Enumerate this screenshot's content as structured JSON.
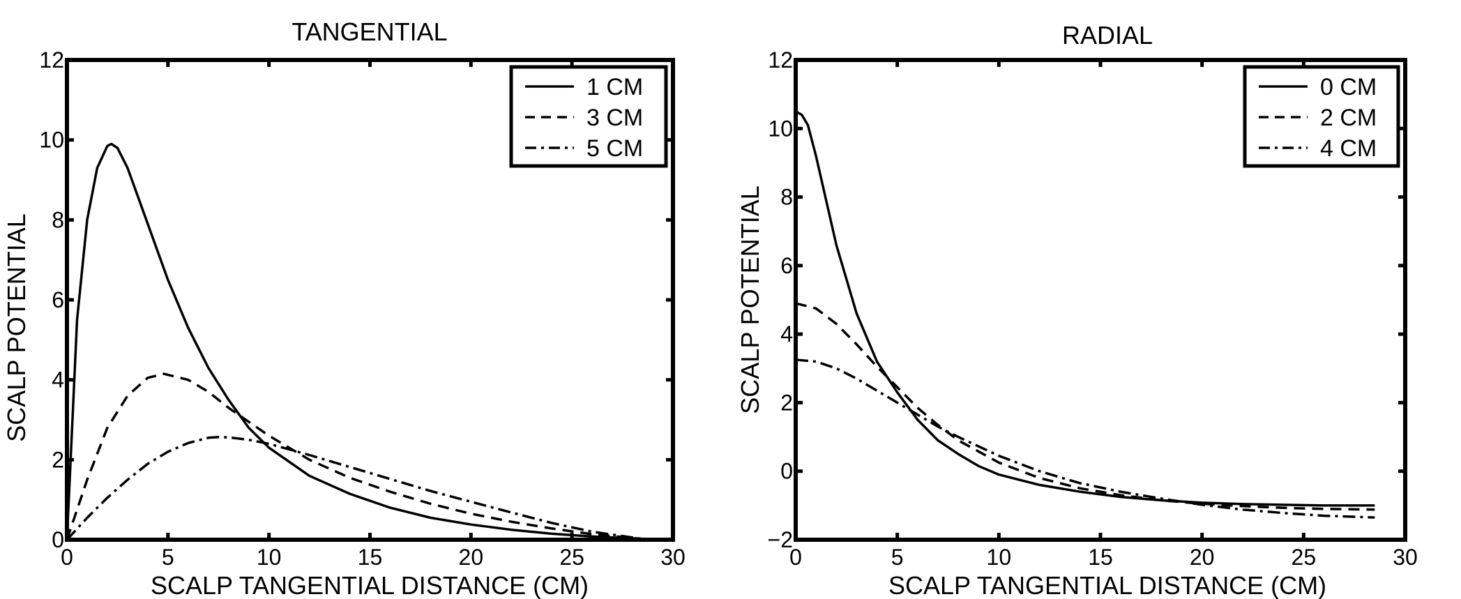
{
  "chart_data": [
    {
      "type": "line",
      "title": "TANGENTIAL",
      "xlabel": "SCALP TANGENTIAL DISTANCE (CM)",
      "ylabel": "SCALP POTENTIAL",
      "xlim": [
        0,
        30
      ],
      "ylim": [
        0,
        12
      ],
      "xticks": [
        0,
        5,
        10,
        15,
        20,
        25,
        30
      ],
      "yticks": [
        0,
        2,
        4,
        6,
        8,
        10,
        12
      ],
      "xtick_labels": [
        "0",
        "5",
        "10",
        "15",
        "20",
        "25",
        "30"
      ],
      "ytick_labels": [
        "0",
        "2",
        "4",
        "6",
        "8",
        "10",
        "12"
      ],
      "grid": false,
      "legend_position": "top-right",
      "series": [
        {
          "name": "1 CM",
          "style": "solid",
          "x": [
            0,
            0.5,
            1,
            1.5,
            2,
            2.2,
            2.5,
            3,
            3.5,
            4,
            5,
            6,
            7,
            8,
            9,
            10,
            12,
            14,
            16,
            18,
            20,
            22,
            24,
            26,
            28.5
          ],
          "y": [
            0,
            5.5,
            8.0,
            9.3,
            9.85,
            9.9,
            9.8,
            9.3,
            8.6,
            7.9,
            6.5,
            5.3,
            4.3,
            3.5,
            2.8,
            2.3,
            1.6,
            1.15,
            0.8,
            0.55,
            0.38,
            0.25,
            0.15,
            0.08,
            0.02
          ]
        },
        {
          "name": "3 CM",
          "style": "dashed",
          "x": [
            0,
            1,
            2,
            3,
            4,
            4.8,
            6,
            7,
            8,
            9,
            10,
            12,
            14,
            16,
            18,
            20,
            22,
            24,
            26,
            28.5
          ],
          "y": [
            0,
            1.5,
            2.8,
            3.6,
            4.05,
            4.15,
            4.0,
            3.7,
            3.3,
            2.95,
            2.6,
            2.0,
            1.55,
            1.2,
            0.9,
            0.65,
            0.45,
            0.28,
            0.14,
            0.02
          ]
        },
        {
          "name": "5 CM",
          "style": "dashdot",
          "x": [
            0,
            1,
            2,
            3,
            4,
            5,
            6,
            7,
            7.5,
            8,
            9,
            10,
            12,
            14,
            16,
            18,
            20,
            22,
            24,
            26,
            28.5
          ],
          "y": [
            0,
            0.55,
            1.05,
            1.5,
            1.9,
            2.2,
            2.42,
            2.55,
            2.57,
            2.56,
            2.5,
            2.4,
            2.12,
            1.82,
            1.52,
            1.22,
            0.95,
            0.68,
            0.42,
            0.2,
            0.02
          ]
        }
      ]
    },
    {
      "type": "line",
      "title": "RADIAL",
      "xlabel": "SCALP TANGENTIAL DISTANCE (CM)",
      "ylabel": "SCALP POTENTIAL",
      "xlim": [
        0,
        30
      ],
      "ylim": [
        -2,
        12
      ],
      "xticks": [
        0,
        5,
        10,
        15,
        20,
        25,
        30
      ],
      "yticks": [
        -2,
        0,
        2,
        4,
        6,
        8,
        10,
        12
      ],
      "xtick_labels": [
        "0",
        "5",
        "10",
        "15",
        "20",
        "25",
        "30"
      ],
      "ytick_labels": [
        "−2",
        "0",
        "2",
        "4",
        "6",
        "8",
        "10",
        "12"
      ],
      "grid": false,
      "legend_position": "top-right",
      "series": [
        {
          "name": "0 CM",
          "style": "solid",
          "x": [
            0,
            0.3,
            0.6,
            1,
            1.5,
            2,
            3,
            4,
            5,
            6,
            7,
            8,
            9,
            10,
            12,
            14,
            16,
            18,
            20,
            22,
            24,
            26,
            28.5
          ],
          "y": [
            10.5,
            10.4,
            10.1,
            9.2,
            7.9,
            6.6,
            4.6,
            3.2,
            2.3,
            1.5,
            0.9,
            0.5,
            0.15,
            -0.1,
            -0.4,
            -0.6,
            -0.75,
            -0.85,
            -0.92,
            -0.96,
            -0.98,
            -1.0,
            -1.0
          ]
        },
        {
          "name": "2 CM",
          "style": "dashed",
          "x": [
            0,
            1,
            2,
            3,
            4,
            5,
            6,
            7,
            8,
            10,
            12,
            14,
            16,
            18,
            20,
            22,
            24,
            26,
            28.5
          ],
          "y": [
            4.9,
            4.75,
            4.3,
            3.7,
            3.05,
            2.45,
            1.85,
            1.35,
            0.9,
            0.25,
            -0.2,
            -0.5,
            -0.7,
            -0.85,
            -0.95,
            -1.02,
            -1.07,
            -1.1,
            -1.12
          ]
        },
        {
          "name": "4 CM",
          "style": "dashdot",
          "x": [
            0,
            1,
            2,
            3,
            4,
            5,
            6,
            7,
            8,
            10,
            12,
            14,
            16,
            18,
            20,
            22,
            24,
            26,
            28.5
          ],
          "y": [
            3.25,
            3.2,
            3.0,
            2.7,
            2.35,
            2.0,
            1.65,
            1.3,
            1.0,
            0.45,
            0.0,
            -0.35,
            -0.6,
            -0.8,
            -0.98,
            -1.12,
            -1.22,
            -1.3,
            -1.35
          ]
        }
      ]
    }
  ]
}
